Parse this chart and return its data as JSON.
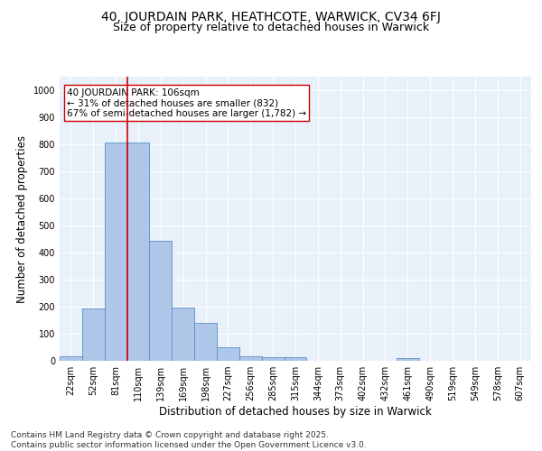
{
  "title_line1": "40, JOURDAIN PARK, HEATHCOTE, WARWICK, CV34 6FJ",
  "title_line2": "Size of property relative to detached houses in Warwick",
  "xlabel": "Distribution of detached houses by size in Warwick",
  "ylabel": "Number of detached properties",
  "bar_color": "#aec6e8",
  "bar_edge_color": "#5a8fc4",
  "bins": [
    "22sqm",
    "52sqm",
    "81sqm",
    "110sqm",
    "139sqm",
    "169sqm",
    "198sqm",
    "227sqm",
    "256sqm",
    "285sqm",
    "315sqm",
    "344sqm",
    "373sqm",
    "402sqm",
    "432sqm",
    "461sqm",
    "490sqm",
    "519sqm",
    "549sqm",
    "578sqm",
    "607sqm"
  ],
  "values": [
    18,
    195,
    805,
    805,
    445,
    198,
    140,
    50,
    18,
    13,
    13,
    0,
    0,
    0,
    0,
    10,
    0,
    0,
    0,
    0,
    0
  ],
  "vline_color": "#cc0000",
  "annotation_text": "40 JOURDAIN PARK: 106sqm\n← 31% of detached houses are smaller (832)\n67% of semi-detached houses are larger (1,782) →",
  "annotation_box_color": "#ffffff",
  "annotation_box_edge": "#cc0000",
  "ylim": [
    0,
    1050
  ],
  "yticks": [
    0,
    100,
    200,
    300,
    400,
    500,
    600,
    700,
    800,
    900,
    1000
  ],
  "bg_color": "#e8f0fa",
  "grid_color": "#ffffff",
  "footer_line1": "Contains HM Land Registry data © Crown copyright and database right 2025.",
  "footer_line2": "Contains public sector information licensed under the Open Government Licence v3.0.",
  "title_fontsize": 10,
  "subtitle_fontsize": 9,
  "axis_label_fontsize": 8.5,
  "tick_fontsize": 7,
  "annotation_fontsize": 7.5,
  "footer_fontsize": 6.5
}
